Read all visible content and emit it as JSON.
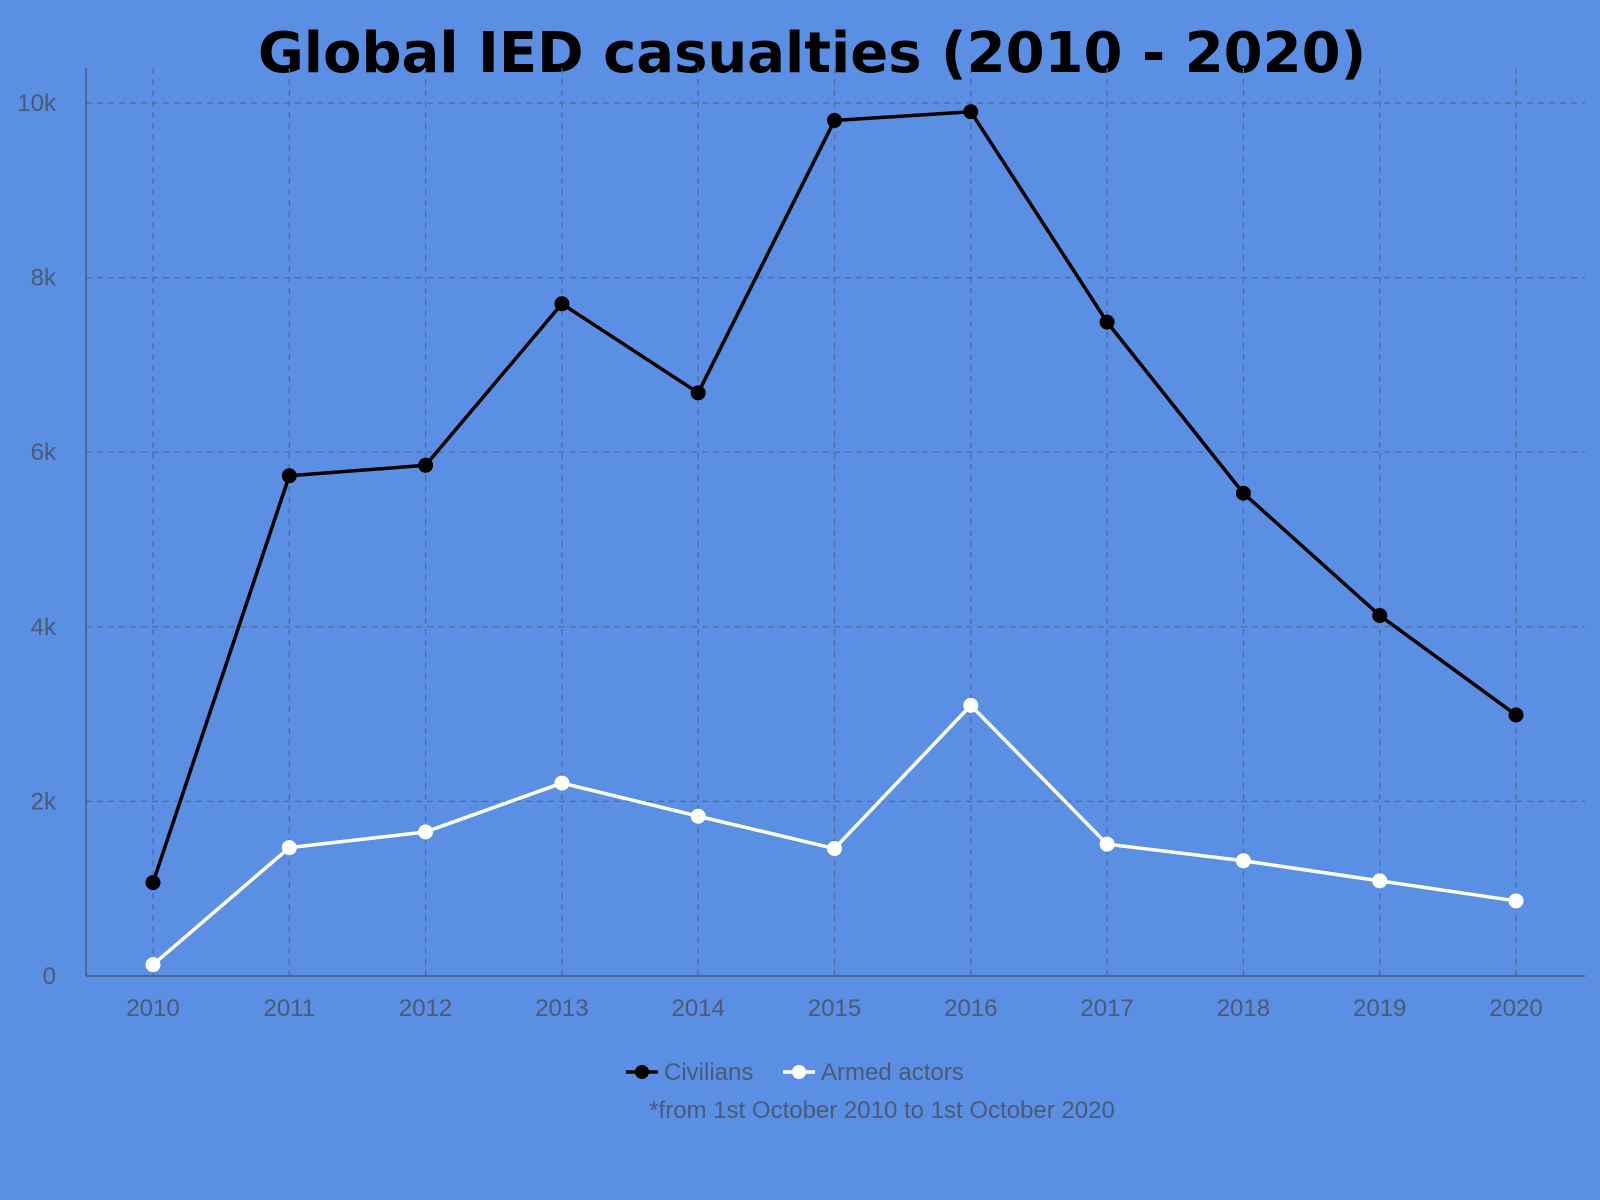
{
  "chart_data": {
    "type": "line",
    "title": "Global IED casualties (2010 - 2020)",
    "xlabel": "",
    "ylabel": "",
    "categories": [
      "2010",
      "2011",
      "2012",
      "2013",
      "2014",
      "2015",
      "2016",
      "2017",
      "2018",
      "2019",
      "2020"
    ],
    "y_ticks": [
      {
        "value": 0,
        "label": "0"
      },
      {
        "value": 2000,
        "label": "2k"
      },
      {
        "value": 4000,
        "label": "4k"
      },
      {
        "value": 6000,
        "label": "6k"
      },
      {
        "value": 8000,
        "label": "8k"
      },
      {
        "value": 10000,
        "label": "10k"
      }
    ],
    "ylim": [
      0,
      10000
    ],
    "grid": true,
    "legend_position": "bottom",
    "series": [
      {
        "name": "Civilians",
        "color": "#000000",
        "values": [
          1070,
          5730,
          5850,
          7700,
          6680,
          9800,
          9900,
          7490,
          5530,
          4130,
          2990
        ]
      },
      {
        "name": "Armed actors",
        "color": "#ffffff",
        "values": [
          130,
          1470,
          1650,
          2210,
          1830,
          1460,
          3100,
          1510,
          1320,
          1090,
          860
        ]
      }
    ],
    "footnote": "*from 1st October 2010 to 1st October 2020"
  }
}
